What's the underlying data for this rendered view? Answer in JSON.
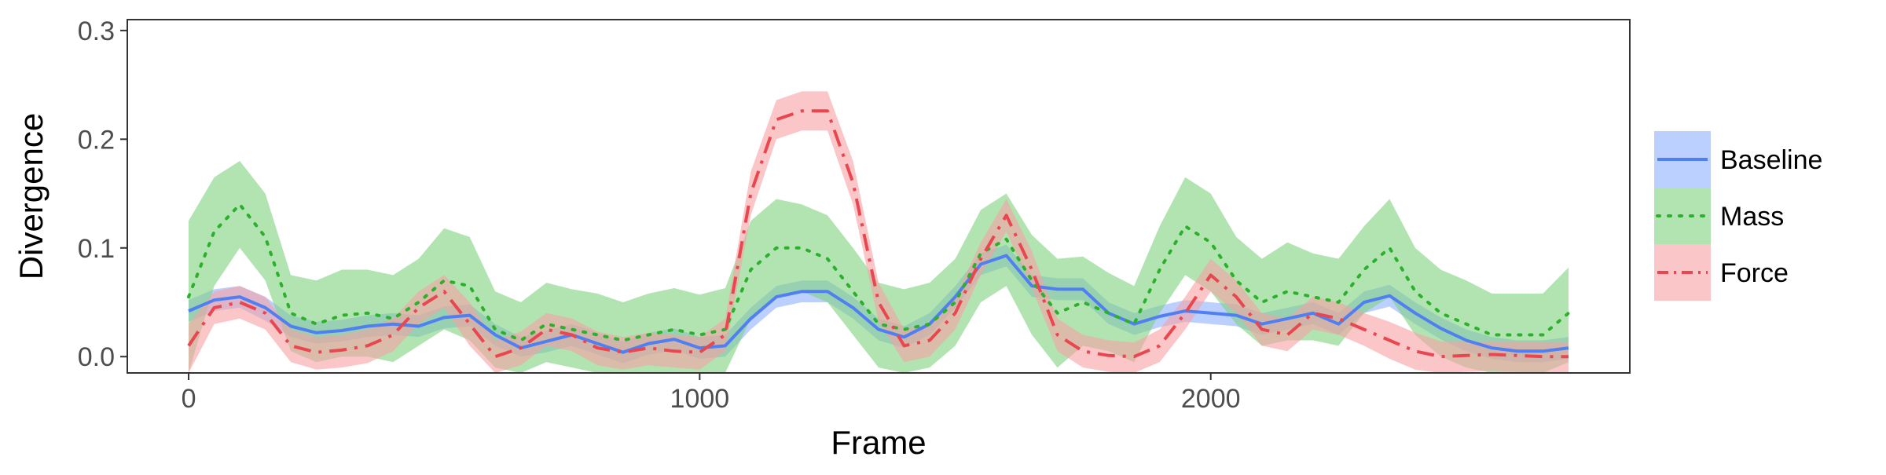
{
  "chart_data": {
    "type": "line",
    "title": "",
    "xlabel": "Frame",
    "ylabel": "Divergence",
    "xlim": [
      -120,
      2820
    ],
    "ylim": [
      -0.015,
      0.31
    ],
    "x_ticks": [
      0,
      1000,
      2000
    ],
    "y_ticks": [
      0.0,
      0.1,
      0.2,
      0.3
    ],
    "x_tick_labels": [
      "0",
      "1000",
      "2000"
    ],
    "y_tick_labels": [
      "0.0",
      "0.1",
      "0.2",
      "0.3"
    ],
    "grid": false,
    "legend_position": "right",
    "series": [
      {
        "name": "Baseline",
        "color": "#4F7FF0",
        "band_color": "#8FB0FF",
        "line_style": "solid",
        "x": [
          0,
          50,
          100,
          150,
          200,
          250,
          300,
          350,
          400,
          450,
          500,
          550,
          600,
          650,
          700,
          750,
          800,
          850,
          900,
          950,
          1000,
          1050,
          1100,
          1150,
          1200,
          1250,
          1300,
          1350,
          1400,
          1450,
          1500,
          1550,
          1600,
          1650,
          1700,
          1750,
          1800,
          1850,
          1900,
          1950,
          2000,
          2050,
          2100,
          2150,
          2200,
          2250,
          2300,
          2350,
          2400,
          2450,
          2500,
          2550,
          2600,
          2650,
          2700
        ],
        "y": [
          0.042,
          0.052,
          0.055,
          0.045,
          0.028,
          0.022,
          0.024,
          0.028,
          0.03,
          0.028,
          0.036,
          0.038,
          0.02,
          0.008,
          0.014,
          0.02,
          0.012,
          0.004,
          0.012,
          0.016,
          0.008,
          0.01,
          0.035,
          0.055,
          0.06,
          0.06,
          0.045,
          0.025,
          0.018,
          0.03,
          0.055,
          0.085,
          0.093,
          0.065,
          0.062,
          0.062,
          0.04,
          0.03,
          0.037,
          0.042,
          0.04,
          0.038,
          0.03,
          0.035,
          0.04,
          0.03,
          0.05,
          0.056,
          0.04,
          0.026,
          0.015,
          0.008,
          0.005,
          0.005,
          0.008
        ],
        "lower": [
          0.032,
          0.042,
          0.045,
          0.033,
          0.018,
          0.012,
          0.014,
          0.018,
          0.02,
          0.018,
          0.026,
          0.028,
          0.01,
          0.0,
          0.004,
          0.01,
          0.002,
          -0.006,
          0.002,
          0.006,
          -0.002,
          0.0,
          0.025,
          0.045,
          0.05,
          0.05,
          0.035,
          0.015,
          0.008,
          0.02,
          0.045,
          0.075,
          0.083,
          0.055,
          0.052,
          0.052,
          0.03,
          0.02,
          0.027,
          0.032,
          0.03,
          0.028,
          0.02,
          0.025,
          0.03,
          0.02,
          0.04,
          0.046,
          0.03,
          0.016,
          0.005,
          -0.002,
          -0.005,
          -0.005,
          -0.002
        ],
        "upper": [
          0.052,
          0.062,
          0.065,
          0.055,
          0.038,
          0.032,
          0.034,
          0.038,
          0.04,
          0.038,
          0.046,
          0.048,
          0.03,
          0.018,
          0.024,
          0.03,
          0.022,
          0.014,
          0.022,
          0.026,
          0.018,
          0.02,
          0.045,
          0.065,
          0.07,
          0.07,
          0.055,
          0.035,
          0.028,
          0.04,
          0.065,
          0.095,
          0.103,
          0.075,
          0.072,
          0.072,
          0.05,
          0.04,
          0.047,
          0.052,
          0.05,
          0.048,
          0.04,
          0.045,
          0.05,
          0.04,
          0.06,
          0.066,
          0.05,
          0.036,
          0.025,
          0.018,
          0.015,
          0.015,
          0.018
        ]
      },
      {
        "name": "Mass",
        "color": "#2CB02C",
        "band_color": "#7ED27E",
        "line_style": "dotted",
        "x": [
          0,
          50,
          100,
          150,
          200,
          250,
          300,
          350,
          400,
          450,
          500,
          550,
          600,
          650,
          700,
          750,
          800,
          850,
          900,
          950,
          1000,
          1050,
          1100,
          1150,
          1200,
          1250,
          1300,
          1350,
          1400,
          1450,
          1500,
          1550,
          1600,
          1650,
          1700,
          1750,
          1800,
          1850,
          1900,
          1950,
          2000,
          2050,
          2100,
          2150,
          2200,
          2250,
          2300,
          2350,
          2400,
          2450,
          2500,
          2550,
          2600,
          2650,
          2700
        ],
        "y": [
          0.055,
          0.115,
          0.14,
          0.11,
          0.04,
          0.03,
          0.038,
          0.04,
          0.035,
          0.05,
          0.07,
          0.065,
          0.025,
          0.015,
          0.03,
          0.025,
          0.02,
          0.015,
          0.02,
          0.025,
          0.02,
          0.025,
          0.08,
          0.1,
          0.1,
          0.09,
          0.06,
          0.03,
          0.025,
          0.03,
          0.05,
          0.095,
          0.108,
          0.07,
          0.04,
          0.05,
          0.04,
          0.03,
          0.08,
          0.12,
          0.105,
          0.07,
          0.05,
          0.06,
          0.055,
          0.05,
          0.08,
          0.1,
          0.06,
          0.04,
          0.03,
          0.02,
          0.02,
          0.02,
          0.04
        ],
        "lower": [
          -0.015,
          0.065,
          0.1,
          0.07,
          0.005,
          -0.005,
          0.0,
          0.0,
          -0.005,
          0.01,
          0.025,
          0.015,
          -0.01,
          -0.015,
          -0.005,
          -0.01,
          -0.015,
          -0.015,
          -0.015,
          -0.015,
          -0.015,
          -0.015,
          0.035,
          0.055,
          0.06,
          0.05,
          0.02,
          -0.01,
          -0.015,
          -0.01,
          0.01,
          0.05,
          0.065,
          0.02,
          -0.01,
          0.01,
          0.005,
          -0.005,
          0.04,
          0.075,
          0.06,
          0.03,
          0.01,
          0.015,
          0.015,
          0.01,
          0.04,
          0.055,
          0.02,
          0.0,
          -0.01,
          -0.015,
          -0.015,
          -0.015,
          -0.005
        ],
        "upper": [
          0.125,
          0.165,
          0.18,
          0.15,
          0.075,
          0.07,
          0.08,
          0.08,
          0.075,
          0.09,
          0.118,
          0.11,
          0.06,
          0.05,
          0.068,
          0.062,
          0.058,
          0.05,
          0.058,
          0.063,
          0.057,
          0.063,
          0.125,
          0.145,
          0.14,
          0.13,
          0.1,
          0.068,
          0.062,
          0.068,
          0.09,
          0.135,
          0.15,
          0.112,
          0.09,
          0.092,
          0.077,
          0.065,
          0.12,
          0.165,
          0.15,
          0.11,
          0.09,
          0.105,
          0.095,
          0.09,
          0.12,
          0.145,
          0.1,
          0.08,
          0.07,
          0.058,
          0.058,
          0.058,
          0.082
        ]
      },
      {
        "name": "Force",
        "color": "#E8474F",
        "band_color": "#F7A0A4",
        "line_style": "dashdot",
        "x": [
          0,
          50,
          100,
          150,
          200,
          250,
          300,
          350,
          400,
          450,
          500,
          550,
          600,
          650,
          700,
          750,
          800,
          850,
          900,
          950,
          1000,
          1050,
          1100,
          1150,
          1200,
          1250,
          1300,
          1350,
          1400,
          1450,
          1500,
          1550,
          1600,
          1650,
          1700,
          1750,
          1800,
          1850,
          1900,
          1950,
          2000,
          2050,
          2100,
          2150,
          2200,
          2250,
          2300,
          2350,
          2400,
          2450,
          2500,
          2550,
          2600,
          2650,
          2700
        ],
        "y": [
          0.01,
          0.045,
          0.05,
          0.04,
          0.01,
          0.004,
          0.006,
          0.01,
          0.02,
          0.045,
          0.06,
          0.03,
          0.0,
          0.008,
          0.025,
          0.02,
          0.008,
          0.004,
          0.008,
          0.005,
          0.004,
          0.02,
          0.15,
          0.218,
          0.226,
          0.226,
          0.16,
          0.05,
          0.01,
          0.015,
          0.04,
          0.09,
          0.13,
          0.08,
          0.02,
          0.005,
          0.001,
          0.0,
          0.01,
          0.04,
          0.075,
          0.055,
          0.025,
          0.02,
          0.04,
          0.035,
          0.025,
          0.015,
          0.005,
          0.0,
          0.001,
          0.002,
          0.001,
          0.0,
          0.0
        ],
        "lower": [
          -0.015,
          0.03,
          0.035,
          0.025,
          -0.005,
          -0.012,
          -0.01,
          -0.006,
          0.005,
          0.03,
          0.045,
          0.01,
          -0.015,
          -0.008,
          0.01,
          0.005,
          -0.008,
          -0.012,
          -0.008,
          -0.01,
          -0.012,
          0.005,
          0.13,
          0.2,
          0.208,
          0.208,
          0.14,
          0.032,
          -0.005,
          0.0,
          0.025,
          0.075,
          0.115,
          0.063,
          0.005,
          -0.01,
          -0.014,
          -0.015,
          -0.005,
          0.025,
          0.06,
          0.04,
          0.01,
          0.005,
          0.025,
          0.02,
          0.01,
          -0.002,
          -0.012,
          -0.015,
          -0.014,
          -0.013,
          -0.014,
          -0.015,
          -0.015
        ],
        "upper": [
          0.03,
          0.06,
          0.065,
          0.055,
          0.025,
          0.018,
          0.02,
          0.025,
          0.035,
          0.06,
          0.075,
          0.05,
          0.015,
          0.023,
          0.04,
          0.035,
          0.023,
          0.018,
          0.022,
          0.02,
          0.018,
          0.035,
          0.17,
          0.236,
          0.244,
          0.244,
          0.18,
          0.068,
          0.025,
          0.03,
          0.055,
          0.105,
          0.145,
          0.097,
          0.035,
          0.02,
          0.015,
          0.013,
          0.025,
          0.055,
          0.09,
          0.07,
          0.04,
          0.035,
          0.055,
          0.05,
          0.04,
          0.032,
          0.022,
          0.014,
          0.014,
          0.014,
          0.014,
          0.013,
          0.013
        ]
      }
    ]
  }
}
